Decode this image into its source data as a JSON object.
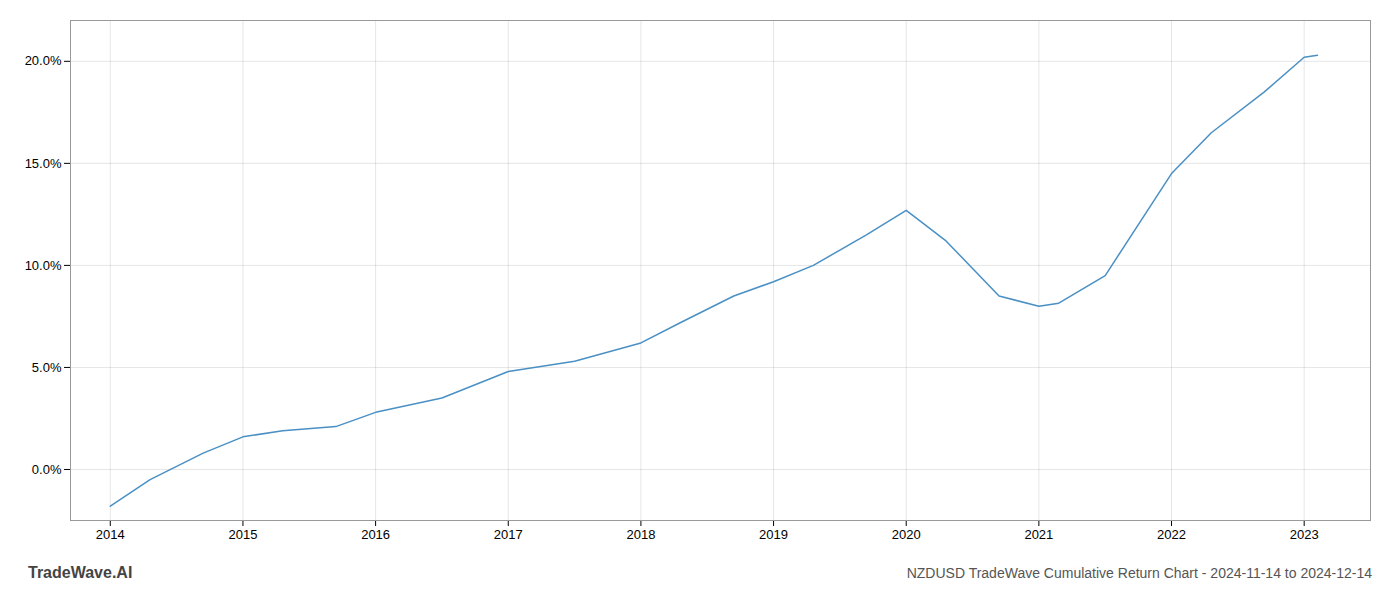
{
  "chart_data": {
    "type": "line",
    "title": "NZDUSD TradeWave Cumulative Return Chart - 2024-11-14 to 2024-12-14",
    "annotations": [
      "TradeWave.AI"
    ],
    "x": [
      2014.0,
      2014.3,
      2014.7,
      2015.0,
      2015.3,
      2015.7,
      2016.0,
      2016.5,
      2017.0,
      2017.5,
      2018.0,
      2018.3,
      2018.7,
      2019.0,
      2019.3,
      2019.7,
      2020.0,
      2020.3,
      2020.7,
      2021.0,
      2021.15,
      2021.5,
      2022.0,
      2022.3,
      2022.7,
      2023.0,
      2023.1
    ],
    "values": [
      -1.8,
      -0.5,
      0.8,
      1.6,
      1.9,
      2.1,
      2.8,
      3.5,
      4.8,
      5.3,
      6.2,
      7.2,
      8.5,
      9.2,
      10.0,
      11.5,
      12.7,
      11.2,
      8.5,
      8.0,
      8.15,
      9.5,
      14.5,
      16.5,
      18.5,
      20.2,
      20.3
    ],
    "color": "#4a90c4",
    "xlim": [
      2013.7,
      2023.5
    ],
    "ylim": [
      -2.5,
      22.0
    ],
    "xticks": [
      2014,
      2015,
      2016,
      2017,
      2018,
      2019,
      2020,
      2021,
      2022,
      2023
    ],
    "yticks": [
      {
        "value": 0.0,
        "label": "0.0%"
      },
      {
        "value": 5.0,
        "label": "5.0%"
      },
      {
        "value": 10.0,
        "label": "10.0%"
      },
      {
        "value": 15.0,
        "label": "15.0%"
      },
      {
        "value": 20.0,
        "label": "20.0%"
      }
    ],
    "grid": true
  }
}
